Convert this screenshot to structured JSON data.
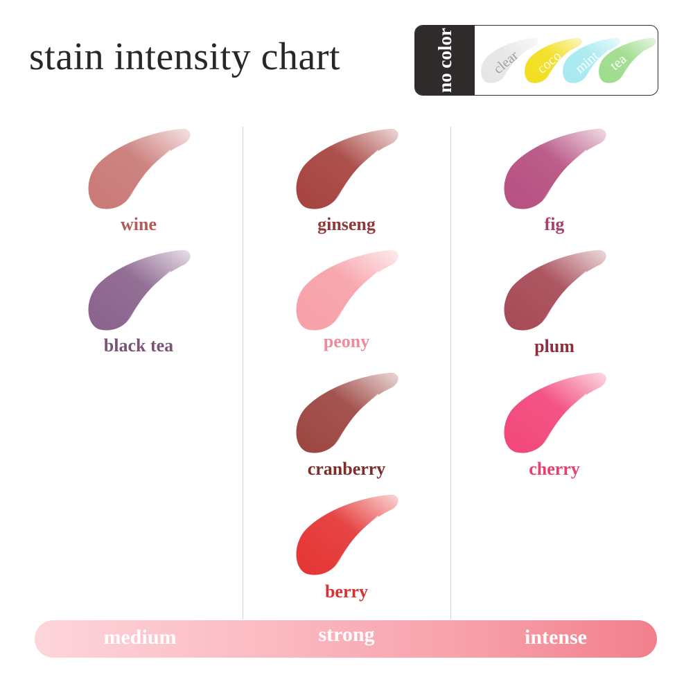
{
  "title": "stain intensity chart",
  "legend": {
    "heading": "no color",
    "items": [
      {
        "name": "clear",
        "color": "#e6e6e6",
        "text_color": "#a0a0a0"
      },
      {
        "name": "coco",
        "color": "#f2de1e",
        "text_color": "#ffffff"
      },
      {
        "name": "mint",
        "color": "#a6eaf0",
        "text_color": "#ffffff"
      },
      {
        "name": "tea",
        "color": "#9ddc8c",
        "text_color": "#ffffff"
      }
    ]
  },
  "columns": [
    {
      "level": "medium",
      "shades": [
        {
          "name": "wine",
          "color": "#c97976",
          "label_color": "#b45c5a"
        },
        {
          "name": "black tea",
          "color": "#8a628c",
          "label_color": "#7a5478"
        }
      ]
    },
    {
      "level": "strong",
      "shades": [
        {
          "name": "ginseng",
          "color": "#a6423e",
          "label_color": "#8e3a3a"
        },
        {
          "name": "peony",
          "color": "#f7a0a8",
          "label_color": "#f08c98"
        },
        {
          "name": "cranberry",
          "color": "#9c4540",
          "label_color": "#7e2c2a"
        },
        {
          "name": "berry",
          "color": "#e53434",
          "label_color": "#d63232"
        }
      ]
    },
    {
      "level": "intense",
      "shades": [
        {
          "name": "fig",
          "color": "#b64f80",
          "label_color": "#a8406e"
        },
        {
          "name": "plum",
          "color": "#a64955",
          "label_color": "#8c2e3e"
        },
        {
          "name": "cherry",
          "color": "#f2467a",
          "label_color": "#e8406e"
        }
      ]
    }
  ],
  "scale": {
    "labels": [
      "medium",
      "strong",
      "intense"
    ]
  }
}
